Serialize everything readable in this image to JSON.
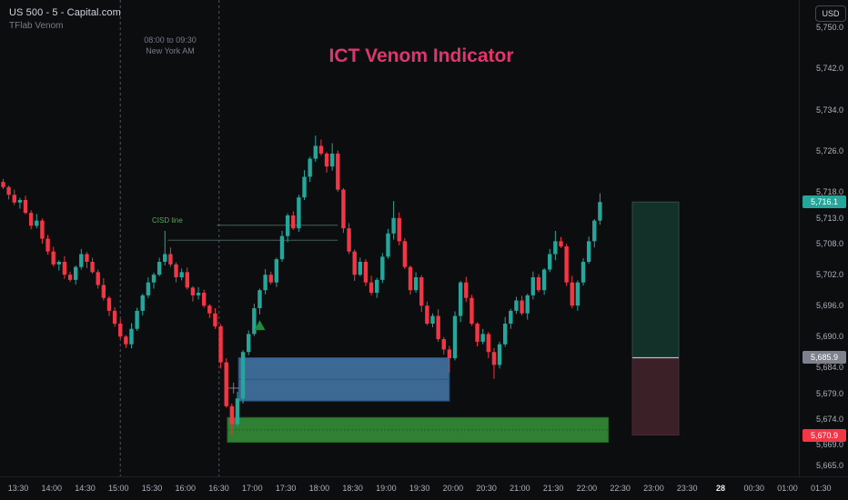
{
  "colors": {
    "background": "#0b0d0f",
    "candle_up": "#26a69a",
    "candle_down": "#f23645",
    "watermark_pink": "#e2356f",
    "axis_text": "#aeb1ba",
    "muted_text": "#787b86",
    "session_dash_line": "#50535c",
    "cisd_line": "#5f837a",
    "cisd_text": "#4caf50",
    "order_block_blue_fill": "#41719f",
    "order_block_blue_border": "#2a5484",
    "breaker_green_fill": "#2f8032",
    "breaker_green_border": "#1f6322",
    "position_profit_fill": "#133129",
    "position_loss_fill": "#3b2127",
    "position_divider": "#b8bcc4",
    "badge_last_bg": "#26a69a",
    "badge_entry_bg": "#7e828c",
    "badge_stop_bg": "#f23645"
  },
  "header": {
    "symbol_title": "US 500 - 5 - Capital.com",
    "indicator_title": "TFlab Venom"
  },
  "watermark": {
    "title": "ICT Venom Indicator"
  },
  "session": {
    "range_label": "08:00 to 09:30",
    "zone_label": "New York AM",
    "from_time": "15:00",
    "to_time": "16:30"
  },
  "price_axis": {
    "currency": "USD",
    "ticks": [
      {
        "label": "5,750.0",
        "value": 5750.0
      },
      {
        "label": "5,742.0",
        "value": 5742.0
      },
      {
        "label": "5,734.0",
        "value": 5734.0
      },
      {
        "label": "5,726.0",
        "value": 5726.0
      },
      {
        "label": "5,718.0",
        "value": 5718.0
      },
      {
        "label": "5,713.0",
        "value": 5713.0
      },
      {
        "label": "5,708.0",
        "value": 5708.0
      },
      {
        "label": "5,702.0",
        "value": 5702.0
      },
      {
        "label": "5,696.0",
        "value": 5696.0
      },
      {
        "label": "5,690.0",
        "value": 5690.0
      },
      {
        "label": "5,684.0",
        "value": 5684.0
      },
      {
        "label": "5,679.0",
        "value": 5679.0
      },
      {
        "label": "5,674.0",
        "value": 5674.0
      },
      {
        "label": "5,669.0",
        "value": 5669.0
      },
      {
        "label": "5,665.0",
        "value": 5665.0
      }
    ],
    "badges": [
      {
        "label": "5,716.1",
        "value": 5716.1,
        "type": "last-price"
      },
      {
        "label": "5,685.9",
        "value": 5685.9,
        "type": "entry-price"
      },
      {
        "label": "5,670.9",
        "value": 5670.9,
        "type": "stop-price"
      }
    ]
  },
  "time_axis": {
    "labels": [
      "13:30",
      "14:00",
      "14:30",
      "15:00",
      "15:30",
      "16:00",
      "16:30",
      "17:00",
      "17:30",
      "18:00",
      "18:30",
      "19:00",
      "19:30",
      "20:00",
      "20:30",
      "21:00",
      "21:30",
      "22:00",
      "22:30",
      "23:00",
      "23:30",
      "28",
      "00:30",
      "01:00",
      "01:30"
    ],
    "emphasized_label": "28"
  },
  "chart_data": {
    "type": "candlestick",
    "symbol": "US 500",
    "interval": "5m",
    "start_time": "13:15",
    "interval_minutes": 5,
    "last_price": 5716.1,
    "price_axis_range": [
      5665.0,
      5750.0
    ],
    "first_open": 5720.0,
    "closes": [
      5719.0,
      5717.5,
      5716.0,
      5716.5,
      5714.0,
      5711.5,
      5712.5,
      5709.0,
      5706.5,
      5704.0,
      5704.5,
      5702.0,
      5701.0,
      5703.5,
      5706.0,
      5704.5,
      5702.5,
      5700.0,
      5697.5,
      5695.0,
      5692.5,
      5690.0,
      5688.5,
      5691.5,
      5695.0,
      5698.0,
      5700.5,
      5702.0,
      5704.5,
      5706.0,
      5704.0,
      5701.5,
      5702.5,
      5699.5,
      5698.0,
      5698.5,
      5696.0,
      5694.5,
      5692.0,
      5685.0,
      5676.5,
      5673.0,
      5678.0,
      5687.0,
      5690.5,
      5695.5,
      5699.0,
      5702.0,
      5700.5,
      5705.0,
      5709.5,
      5713.5,
      5711.0,
      5717.0,
      5721.0,
      5724.5,
      5727.0,
      5725.5,
      5723.0,
      5725.5,
      5718.5,
      5711.0,
      5706.5,
      5702.0,
      5704.5,
      5700.5,
      5698.5,
      5701.0,
      5705.5,
      5710.0,
      5713.0,
      5708.5,
      5703.5,
      5699.0,
      5701.5,
      5696.0,
      5692.5,
      5694.0,
      5689.5,
      5687.5,
      5685.8,
      5694.0,
      5700.5,
      5697.5,
      5692.5,
      5689.0,
      5690.5,
      5687.0,
      5684.5,
      5688.5,
      5692.5,
      5695.0,
      5697.0,
      5694.5,
      5698.0,
      5701.5,
      5699.0,
      5703.0,
      5706.0,
      5708.5,
      5707.5,
      5700.5,
      5696.0,
      5700.5,
      5704.5,
      5708.5,
      5712.5,
      5716.1
    ],
    "wick_high_pattern": [
      0.6,
      0.3,
      1.0,
      0.4,
      0.8,
      0.5,
      1.3,
      0.4,
      0.7,
      0.9,
      0.3,
      1.1
    ],
    "wick_low_pattern": [
      0.4,
      0.9,
      0.5,
      1.2,
      0.3,
      0.7,
      0.5,
      1.0,
      0.6,
      0.4,
      1.2,
      0.8
    ],
    "wick_overrides": {
      "22": {
        "low": 5687.8
      },
      "29": {
        "high": 5710.5
      },
      "41": {
        "low": 5670.9
      },
      "56": {
        "high": 5729.0
      },
      "57": {
        "high": 5728.2
      },
      "59": {
        "high": 5727.5
      },
      "70": {
        "high": 5716.3
      },
      "80": {
        "low": 5683.0
      },
      "88": {
        "low": 5681.8
      },
      "99": {
        "high": 5710.5
      },
      "107": {
        "high": 5717.8
      }
    },
    "overlays": {
      "session_window": {
        "from_idx": 21,
        "to_idx": 38.7
      },
      "cisd": {
        "label": "CISD line",
        "lines": [
          {
            "price": 5711.6,
            "from_idx": 38.3,
            "to_idx": 60.0
          },
          {
            "price": 5708.7,
            "from_idx": 29.5,
            "to_idx": 60.0
          }
        ]
      },
      "order_block": {
        "top": 5685.9,
        "bottom": 5677.5,
        "mid": 5681.7,
        "from_idx": 42.2,
        "to_idx": 80.0
      },
      "breaker_block": {
        "top": 5674.3,
        "bottom": 5669.5,
        "mid": 5671.9,
        "from_idx": 40.2,
        "to_idx": 108.5
      },
      "long_position": {
        "entry": 5685.9,
        "target": 5716.1,
        "stop": 5670.9
      },
      "buy_marker": {
        "idx": 46,
        "price": 5693.2,
        "shape": "triangle-up",
        "color": "#1e8c3a"
      },
      "crosshair": {
        "idx": 41.3,
        "price": 5680.0
      }
    }
  }
}
